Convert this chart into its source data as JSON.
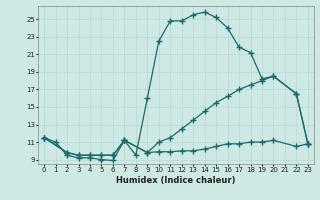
{
  "xlabel": "Humidex (Indice chaleur)",
  "bg_color": "#cee8e4",
  "line_color": "#1a6b6b",
  "grid_color": "#b8d8d4",
  "xlim": [
    -0.5,
    23.5
  ],
  "ylim": [
    8.5,
    26.5
  ],
  "xticks": [
    0,
    1,
    2,
    3,
    4,
    5,
    6,
    7,
    8,
    9,
    10,
    11,
    12,
    13,
    14,
    15,
    16,
    17,
    18,
    19,
    20,
    21,
    22,
    23
  ],
  "yticks": [
    9,
    11,
    13,
    15,
    17,
    19,
    21,
    23,
    25
  ],
  "line1_x": [
    0,
    1,
    2,
    3,
    4,
    5,
    6,
    7,
    8,
    9,
    10,
    11,
    12,
    13,
    14,
    15,
    16,
    17,
    18,
    19,
    20,
    22,
    23
  ],
  "line1_y": [
    11.5,
    11.0,
    9.5,
    9.2,
    9.2,
    9.0,
    8.9,
    11.2,
    9.5,
    16.0,
    22.5,
    24.8,
    24.8,
    25.5,
    25.8,
    25.2,
    24.0,
    21.8,
    21.2,
    18.2,
    18.5,
    16.5,
    10.8
  ],
  "line2_x": [
    0,
    2,
    3,
    4,
    5,
    6,
    7,
    9,
    10,
    11,
    12,
    13,
    14,
    15,
    16,
    17,
    18,
    19,
    20,
    22,
    23
  ],
  "line2_y": [
    11.5,
    9.8,
    9.5,
    9.5,
    9.5,
    9.5,
    11.2,
    9.8,
    11.0,
    11.5,
    12.5,
    13.5,
    14.5,
    15.5,
    16.2,
    17.0,
    17.5,
    18.0,
    18.5,
    16.5,
    10.8
  ],
  "line3_x": [
    0,
    2,
    3,
    4,
    5,
    6,
    7,
    9,
    10,
    11,
    12,
    13,
    14,
    15,
    16,
    17,
    18,
    19,
    20,
    22,
    23
  ],
  "line3_y": [
    11.5,
    9.8,
    9.5,
    9.5,
    9.5,
    9.5,
    11.2,
    9.8,
    9.9,
    9.9,
    10.0,
    10.0,
    10.2,
    10.5,
    10.8,
    10.8,
    11.0,
    11.0,
    11.2,
    10.5,
    10.8
  ]
}
